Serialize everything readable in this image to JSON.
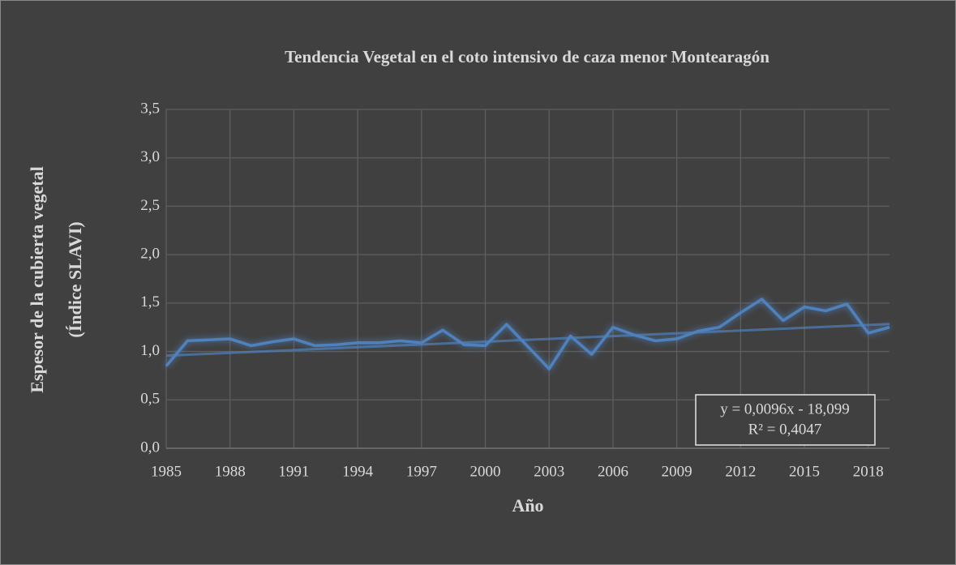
{
  "chart_data": {
    "type": "line",
    "title": "Tendencia Vegetal en el coto  intensivo de caza menor Montearagón",
    "xlabel": "Año",
    "ylabel": [
      "Espesor de la cubierta vegetal",
      "(Índice SLAVI)"
    ],
    "x": [
      1985,
      1986,
      1987,
      1988,
      1989,
      1990,
      1991,
      1992,
      1993,
      1994,
      1995,
      1996,
      1997,
      1998,
      1999,
      2000,
      2001,
      2002,
      2003,
      2004,
      2005,
      2006,
      2007,
      2008,
      2009,
      2010,
      2011,
      2012,
      2013,
      2014,
      2015,
      2016,
      2017,
      2018,
      2019
    ],
    "series": [
      {
        "color": "#4f81bd",
        "values": [
          0.85,
          1.11,
          1.12,
          1.13,
          1.06,
          1.1,
          1.13,
          1.06,
          1.07,
          1.09,
          1.09,
          1.11,
          1.09,
          1.22,
          1.07,
          1.06,
          1.28,
          1.05,
          0.82,
          1.16,
          0.97,
          1.25,
          1.17,
          1.11,
          1.13,
          1.21,
          1.25,
          1.4,
          1.54,
          1.32,
          1.46,
          1.42,
          1.49,
          1.19,
          1.25
        ]
      }
    ],
    "trendline": {
      "equation": "y = 0,0096x - 18,099",
      "r2": "R² = 0,4047",
      "slope": 0.0096,
      "intercept": -18.099,
      "color": "#4f81bd"
    },
    "xlim": [
      1985,
      2019
    ],
    "xticks": [
      1985,
      1988,
      1991,
      1994,
      1997,
      2000,
      2003,
      2006,
      2009,
      2012,
      2015,
      2018
    ],
    "ylim": [
      0,
      3.5
    ],
    "yticks": [
      {
        "value": 0,
        "label": "0,0"
      },
      {
        "value": 0.5,
        "label": "0,5"
      },
      {
        "value": 1,
        "label": "1,0"
      },
      {
        "value": 1.5,
        "label": "1,5"
      },
      {
        "value": 2,
        "label": "2,0"
      },
      {
        "value": 2.5,
        "label": "2,5"
      },
      {
        "value": 3,
        "label": "3,0"
      },
      {
        "value": 3.5,
        "label": "3,5"
      }
    ],
    "grid": true
  }
}
